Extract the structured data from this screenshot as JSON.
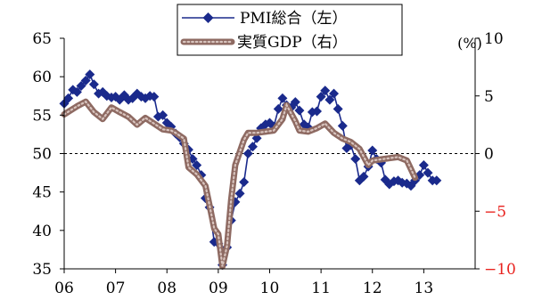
{
  "chart_data": {
    "type": "line",
    "title": "",
    "xlabel": "",
    "unit_right": "(%)",
    "x_ticks": [
      "06",
      "07",
      "08",
      "09",
      "10",
      "11",
      "12",
      "13"
    ],
    "x_range": [
      2006.0,
      2014.0
    ],
    "y_left": {
      "ticks": [
        "65",
        "60",
        "55",
        "50",
        "45",
        "40",
        "35"
      ],
      "range": [
        35,
        65
      ]
    },
    "y_right": {
      "ticks": [
        "10",
        "5",
        "0",
        "−5",
        "−10"
      ],
      "range": [
        -10,
        10
      ],
      "negative_tick_color": "#e8221e"
    },
    "reference_line": {
      "axis": "right",
      "value": 0,
      "style": "dashed"
    },
    "legend": {
      "position": "top-center"
    },
    "series": [
      {
        "name": "PMI総合（左）",
        "axis": "left",
        "color": "#1a2a8c",
        "marker": "diamond",
        "points": [
          [
            2006.0,
            56.5
          ],
          [
            2006.08,
            57.2
          ],
          [
            2006.17,
            58.3
          ],
          [
            2006.25,
            58.0
          ],
          [
            2006.33,
            58.8
          ],
          [
            2006.42,
            59.5
          ],
          [
            2006.5,
            60.3
          ],
          [
            2006.58,
            59.0
          ],
          [
            2006.67,
            57.8
          ],
          [
            2006.75,
            58.0
          ],
          [
            2006.83,
            57.5
          ],
          [
            2006.92,
            57.3
          ],
          [
            2007.0,
            57.4
          ],
          [
            2007.08,
            57.0
          ],
          [
            2007.17,
            57.6
          ],
          [
            2007.25,
            57.0
          ],
          [
            2007.33,
            57.2
          ],
          [
            2007.42,
            57.8
          ],
          [
            2007.5,
            57.4
          ],
          [
            2007.58,
            57.2
          ],
          [
            2007.67,
            57.5
          ],
          [
            2007.75,
            57.4
          ],
          [
            2007.83,
            54.8
          ],
          [
            2007.92,
            55.0
          ],
          [
            2008.0,
            54.0
          ],
          [
            2008.08,
            53.5
          ],
          [
            2008.17,
            52.6
          ],
          [
            2008.25,
            52.1
          ],
          [
            2008.33,
            51.3
          ],
          [
            2008.42,
            50.5
          ],
          [
            2008.5,
            49.3
          ],
          [
            2008.58,
            48.5
          ],
          [
            2008.67,
            47.2
          ],
          [
            2008.75,
            44.2
          ],
          [
            2008.83,
            43.0
          ],
          [
            2008.92,
            38.5
          ],
          [
            2009.0,
            38.3
          ],
          [
            2009.08,
            35.5
          ],
          [
            2009.17,
            37.8
          ],
          [
            2009.25,
            41.3
          ],
          [
            2009.33,
            43.7
          ],
          [
            2009.42,
            44.8
          ],
          [
            2009.5,
            46.3
          ],
          [
            2009.58,
            50.0
          ],
          [
            2009.67,
            50.9
          ],
          [
            2009.75,
            52.0
          ],
          [
            2009.83,
            53.3
          ],
          [
            2009.92,
            53.8
          ],
          [
            2010.0,
            54.0
          ],
          [
            2010.08,
            53.5
          ],
          [
            2010.17,
            55.8
          ],
          [
            2010.25,
            57.2
          ],
          [
            2010.33,
            56.3
          ],
          [
            2010.42,
            56.0
          ],
          [
            2010.5,
            56.7
          ],
          [
            2010.58,
            55.6
          ],
          [
            2010.67,
            53.8
          ],
          [
            2010.75,
            53.4
          ],
          [
            2010.83,
            55.4
          ],
          [
            2010.92,
            55.5
          ],
          [
            2011.0,
            57.4
          ],
          [
            2011.08,
            58.2
          ],
          [
            2011.17,
            57.0
          ],
          [
            2011.25,
            57.8
          ],
          [
            2011.33,
            55.8
          ],
          [
            2011.42,
            53.6
          ],
          [
            2011.5,
            50.7
          ],
          [
            2011.58,
            51.1
          ],
          [
            2011.67,
            49.3
          ],
          [
            2011.75,
            46.5
          ],
          [
            2011.83,
            47.0
          ],
          [
            2011.92,
            48.3
          ],
          [
            2012.0,
            50.4
          ],
          [
            2012.08,
            49.3
          ],
          [
            2012.17,
            48.8
          ],
          [
            2012.25,
            46.6
          ],
          [
            2012.33,
            46.0
          ],
          [
            2012.42,
            46.4
          ],
          [
            2012.5,
            46.5
          ],
          [
            2012.58,
            46.2
          ],
          [
            2012.67,
            46.1
          ],
          [
            2012.75,
            45.8
          ],
          [
            2012.83,
            46.5
          ],
          [
            2012.92,
            47.2
          ],
          [
            2013.0,
            48.5
          ],
          [
            2013.08,
            47.5
          ],
          [
            2013.17,
            46.5
          ],
          [
            2013.25,
            46.5
          ]
        ]
      },
      {
        "name": "実質GDP（右）",
        "axis": "right",
        "color": "#8e6a62",
        "marker": "line",
        "points": [
          [
            2006.0,
            3.4
          ],
          [
            2006.25,
            4.1
          ],
          [
            2006.42,
            4.5
          ],
          [
            2006.58,
            3.6
          ],
          [
            2006.75,
            3.0
          ],
          [
            2006.92,
            4.0
          ],
          [
            2007.08,
            3.6
          ],
          [
            2007.25,
            3.2
          ],
          [
            2007.42,
            2.5
          ],
          [
            2007.58,
            3.1
          ],
          [
            2007.75,
            2.6
          ],
          [
            2007.92,
            2.1
          ],
          [
            2008.08,
            2.0
          ],
          [
            2008.17,
            1.8
          ],
          [
            2008.33,
            1.3
          ],
          [
            2008.42,
            -1.2
          ],
          [
            2008.58,
            -1.8
          ],
          [
            2008.75,
            -2.8
          ],
          [
            2008.83,
            -4.5
          ],
          [
            2008.92,
            -6.5
          ],
          [
            2009.0,
            -7.0
          ],
          [
            2009.08,
            -9.8
          ],
          [
            2009.17,
            -8.0
          ],
          [
            2009.25,
            -4.0
          ],
          [
            2009.33,
            -1.0
          ],
          [
            2009.5,
            1.2
          ],
          [
            2009.58,
            1.8
          ],
          [
            2009.75,
            1.8
          ],
          [
            2009.92,
            1.9
          ],
          [
            2010.08,
            2.0
          ],
          [
            2010.25,
            3.0
          ],
          [
            2010.33,
            4.2
          ],
          [
            2010.5,
            2.8
          ],
          [
            2010.58,
            2.0
          ],
          [
            2010.75,
            1.9
          ],
          [
            2010.92,
            2.2
          ],
          [
            2011.08,
            2.6
          ],
          [
            2011.25,
            1.8
          ],
          [
            2011.42,
            1.3
          ],
          [
            2011.58,
            1.0
          ],
          [
            2011.75,
            0.4
          ],
          [
            2011.92,
            -1.0
          ],
          [
            2012.0,
            -0.6
          ],
          [
            2012.17,
            -0.5
          ],
          [
            2012.33,
            -0.4
          ],
          [
            2012.5,
            -0.3
          ],
          [
            2012.67,
            -0.6
          ],
          [
            2012.83,
            -2.1
          ]
        ]
      }
    ]
  }
}
